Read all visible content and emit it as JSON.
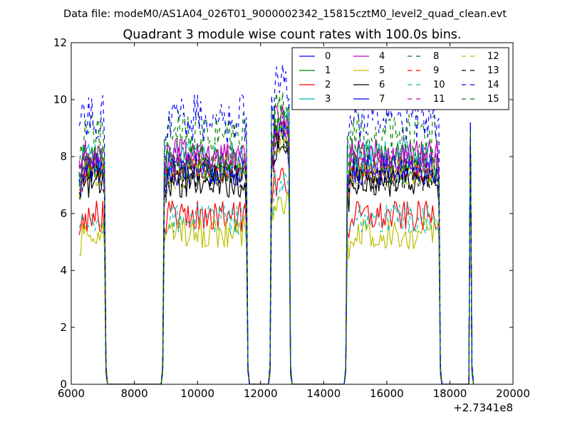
{
  "chart_data": {
    "type": "line",
    "suptitle": "Data file: modeM0/AS1A04_026T01_9000002342_15815cztM0_level2_quad_clean.evt",
    "title": "Quadrant 3 module wise count rates with 100.0s bins.",
    "xlabel": "",
    "ylabel": "",
    "x_offset_label": "+2.7341e8",
    "xlim": [
      6000,
      20000
    ],
    "ylim": [
      0,
      12
    ],
    "x_ticks": [
      6000,
      8000,
      10000,
      12000,
      14000,
      16000,
      18000,
      20000
    ],
    "y_ticks": [
      0,
      2,
      4,
      6,
      8,
      10,
      12
    ],
    "grid": false,
    "legend_position": "top-right",
    "segments": [
      [
        6250,
        7050
      ],
      [
        8950,
        11550
      ],
      [
        12350,
        12900
      ],
      [
        14750,
        17650
      ],
      [
        18650,
        18650
      ]
    ],
    "series": [
      {
        "name": "0",
        "color": "#0000ff",
        "dash": "solid",
        "level": 7.6,
        "end_peak": 9.1
      },
      {
        "name": "1",
        "color": "#008000",
        "dash": "solid",
        "level": 7.6,
        "end_peak": 8.8
      },
      {
        "name": "2",
        "color": "#ff0000",
        "dash": "solid",
        "level": 5.9,
        "end_peak": 8.7
      },
      {
        "name": "3",
        "color": "#00bfbf",
        "dash": "solid",
        "level": 8.0,
        "end_peak": 8.9
      },
      {
        "name": "4",
        "color": "#bf00bf",
        "dash": "solid",
        "level": 8.1,
        "end_peak": 8.9
      },
      {
        "name": "5",
        "color": "#bfbf00",
        "dash": "solid",
        "level": 5.3,
        "end_peak": 8.6
      },
      {
        "name": "6",
        "color": "#000000",
        "dash": "solid",
        "level": 7.1,
        "end_peak": 8.8
      },
      {
        "name": "7",
        "color": "#0000ff",
        "dash": "solid",
        "level": 7.5,
        "end_peak": 9.2
      },
      {
        "name": "8",
        "color": "#008000",
        "dash": "dashed",
        "level": 8.7,
        "end_peak": 9.0
      },
      {
        "name": "9",
        "color": "#ff0000",
        "dash": "dashed",
        "level": 7.6,
        "end_peak": 8.8
      },
      {
        "name": "10",
        "color": "#00bfbf",
        "dash": "dashed",
        "level": 5.8,
        "end_peak": 8.7
      },
      {
        "name": "11",
        "color": "#bf00bf",
        "dash": "dashed",
        "level": 7.9,
        "end_peak": 8.9
      },
      {
        "name": "12",
        "color": "#bfbf00",
        "dash": "dashed",
        "level": 7.4,
        "end_peak": 8.7
      },
      {
        "name": "13",
        "color": "#000000",
        "dash": "dashed",
        "level": 7.3,
        "end_peak": 8.8
      },
      {
        "name": "14",
        "color": "#0000ff",
        "dash": "dashed",
        "level": 9.3,
        "end_peak": 9.2
      },
      {
        "name": "15",
        "color": "#008000",
        "dash": "dashed",
        "level": 8.0,
        "end_peak": 8.9
      }
    ]
  }
}
